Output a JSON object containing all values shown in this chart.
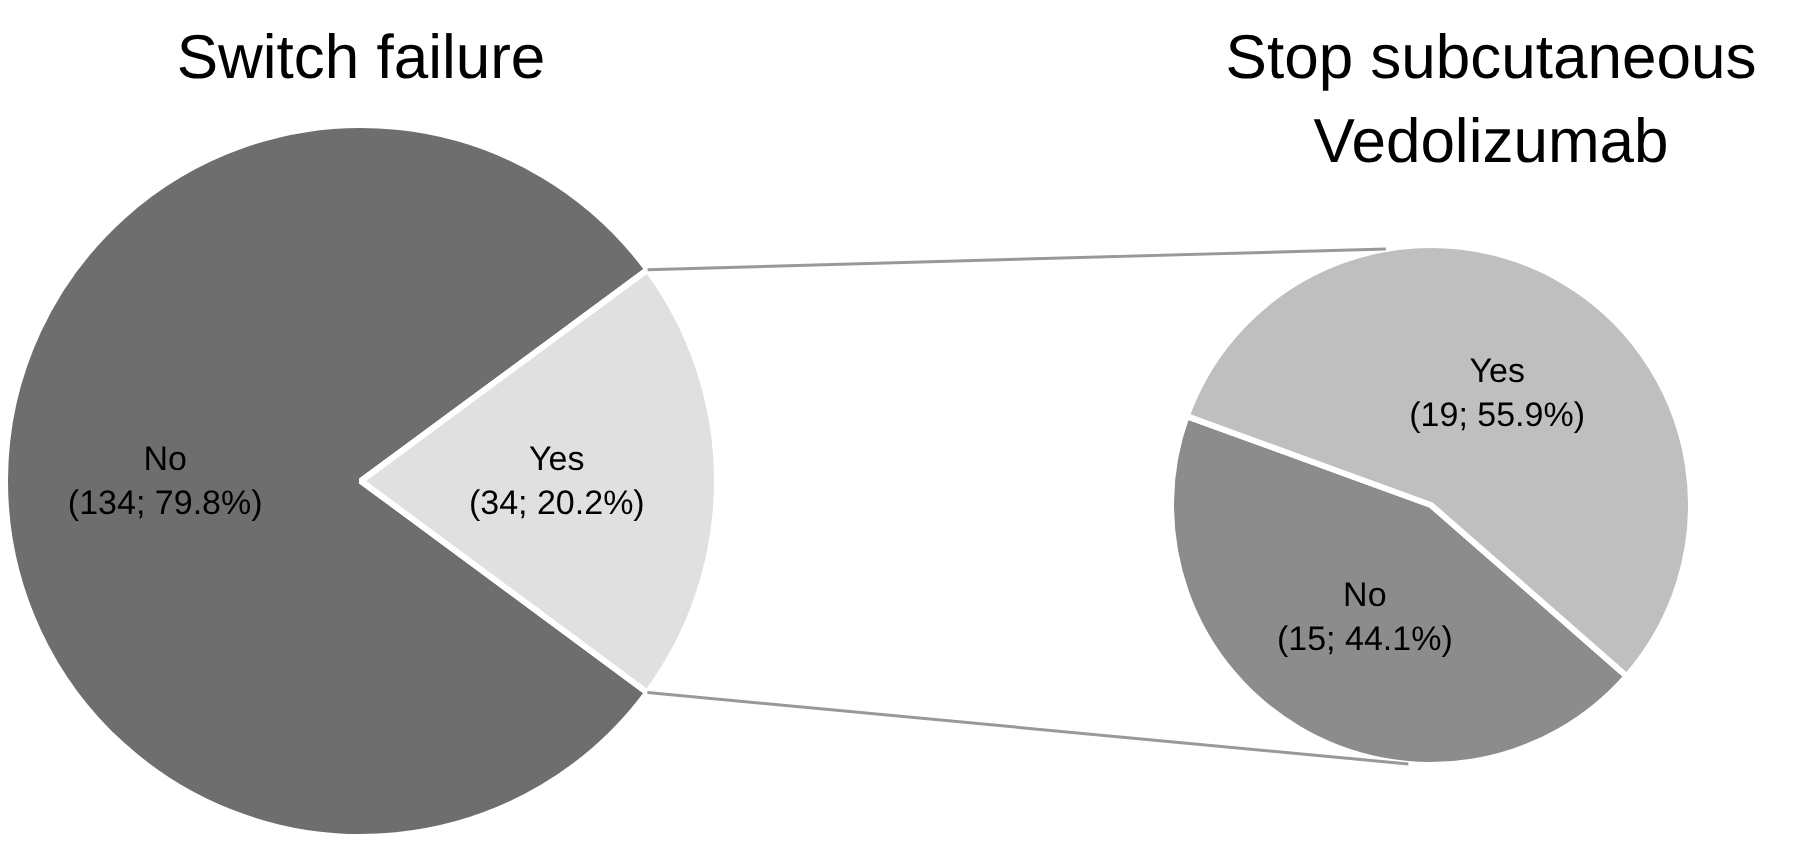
{
  "chart_data": [
    {
      "type": "pie",
      "title": "Switch failure",
      "categories": [
        "No",
        "Yes"
      ],
      "values": [
        134,
        34
      ],
      "colors": [
        "#6e6e6e",
        "#e0e0e0"
      ],
      "value_labels": [
        "(134; 79.8%)",
        "(34; 20.2%)"
      ]
    },
    {
      "type": "pie",
      "title": "Stop subcutaneous\nVedolizumab",
      "categories": [
        "No",
        "Yes"
      ],
      "values": [
        15,
        19
      ],
      "colors": [
        "#8c8c8c",
        "#bfbfbf"
      ],
      "value_labels": [
        "(15; 44.1%)",
        "(19; 55.9%)"
      ]
    }
  ]
}
